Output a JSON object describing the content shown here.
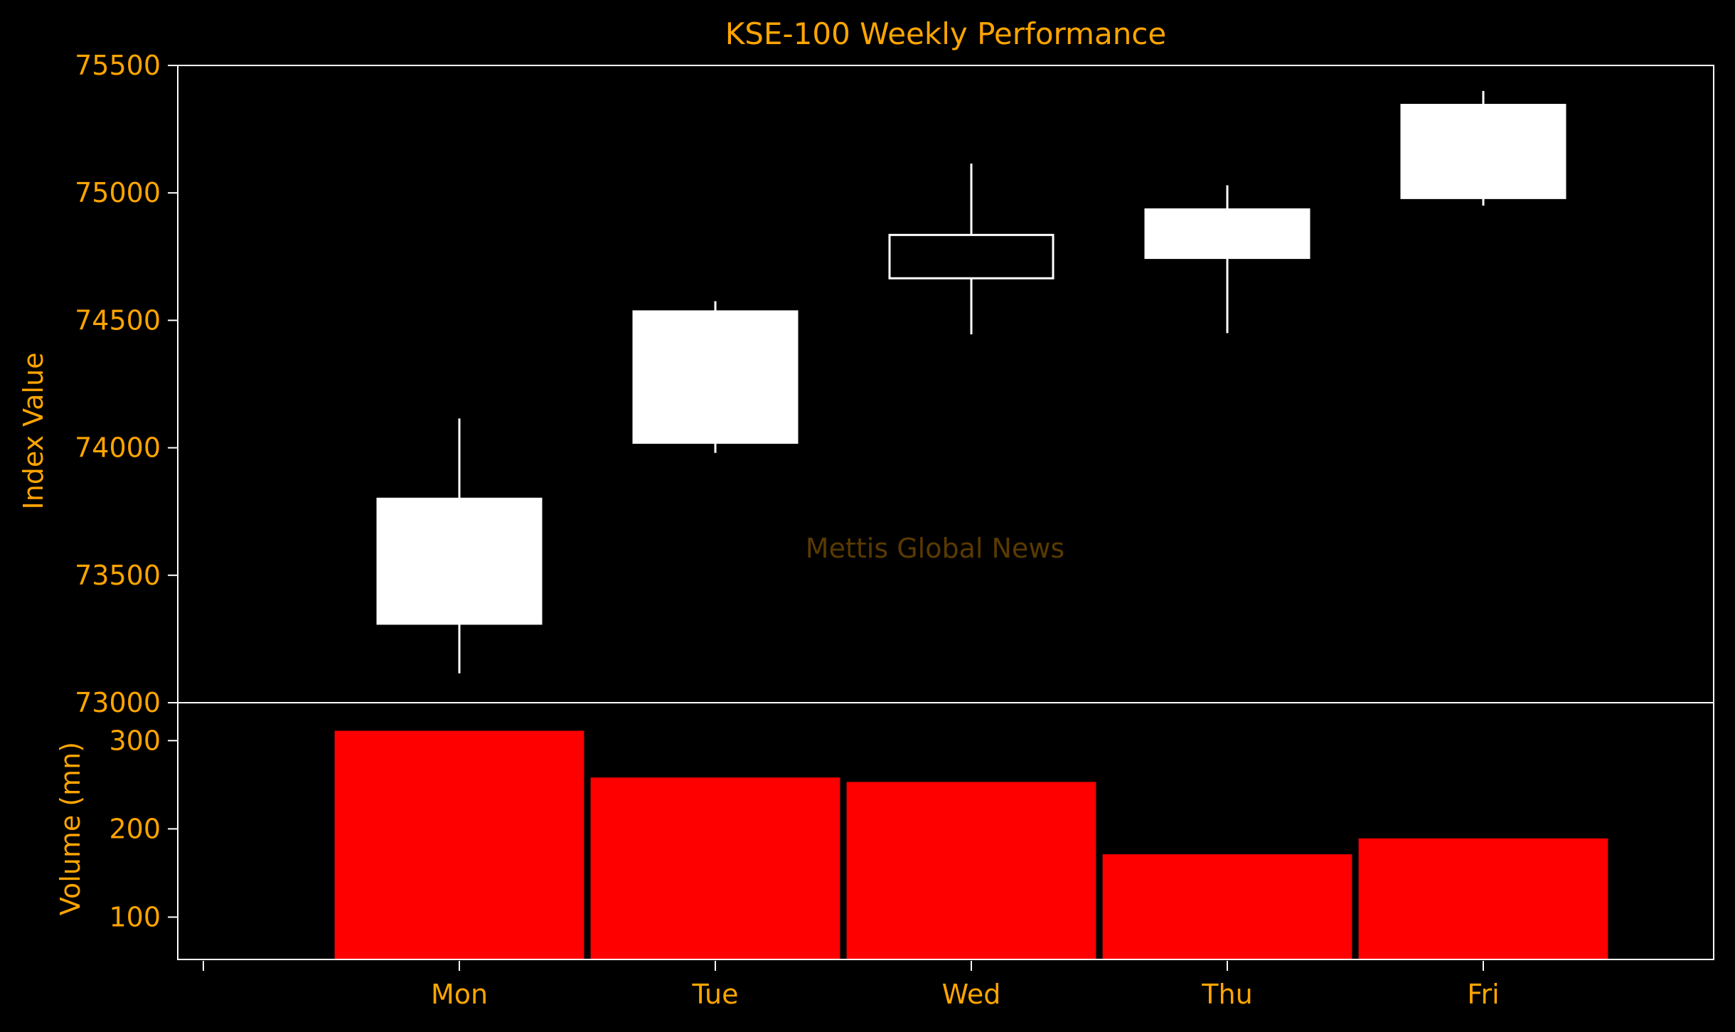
{
  "chart_data": [
    {
      "type": "candlestick",
      "title": "KSE-100 Weekly Performance",
      "ylabel": "Index Value",
      "categories": [
        "Mon",
        "Tue",
        "Wed",
        "Thu",
        "Fri"
      ],
      "ylim": [
        73000,
        75500
      ],
      "yticks": [
        73000,
        73500,
        74000,
        74500,
        75000,
        75500
      ],
      "candles": [
        {
          "open": 73310,
          "close": 73800,
          "high": 74115,
          "low": 73115
        },
        {
          "open": 74020,
          "close": 74535,
          "high": 74575,
          "low": 73980
        },
        {
          "open": 74835,
          "close": 74665,
          "high": 75115,
          "low": 74445
        },
        {
          "open": 74745,
          "close": 74935,
          "high": 75030,
          "low": 74450
        },
        {
          "open": 74980,
          "close": 75345,
          "high": 75400,
          "low": 74950
        }
      ],
      "watermark": "Mettis Global News",
      "colors": {
        "up": "#ffffff",
        "down": "#000000",
        "edge": "#ffffff",
        "text": "#ffa500",
        "background": "#000000"
      }
    },
    {
      "type": "bar",
      "ylabel": "Volume (mn)",
      "categories": [
        "Mon",
        "Tue",
        "Wed",
        "Thu",
        "Fri"
      ],
      "values": [
        312,
        259,
        254,
        172,
        190
      ],
      "ylim": [
        52,
        343
      ],
      "yticks": [
        100,
        200,
        300
      ],
      "colors": {
        "bar": "#ff0000",
        "text": "#ffa500"
      }
    }
  ]
}
